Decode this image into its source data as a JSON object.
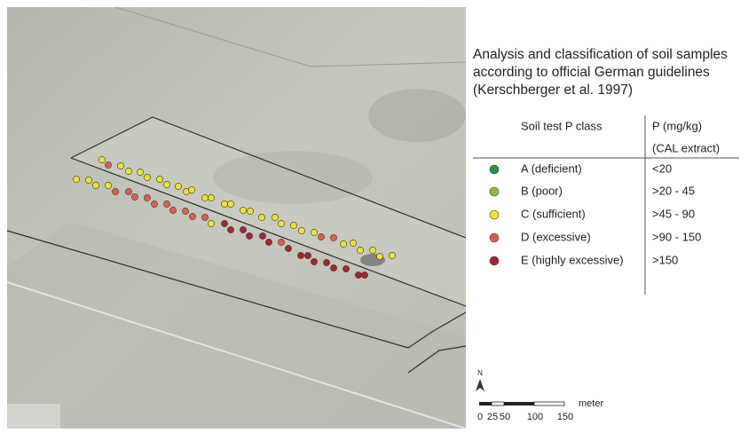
{
  "title_lines": [
    "Analysis and classification of soil samples",
    "according to official German guidelines",
    "(Kerschberger et al. 1997)"
  ],
  "legend": {
    "header": {
      "class": "Soil test P class",
      "unit": "P (mg/kg)",
      "extract": "(CAL extract)"
    },
    "rows": [
      {
        "label": "A (deficient)",
        "range": "<20",
        "color": "#23974a"
      },
      {
        "label": "B (poor)",
        "range": ">20 - 45",
        "color": "#8dbb3e"
      },
      {
        "label": "C (sufficient)",
        "range": ">45 - 90",
        "color": "#efe32c"
      },
      {
        "label": "D (excessive)",
        "range": ">90 - 150",
        "color": "#de5f47"
      },
      {
        "label": "E (highly excessive)",
        "range": ">150",
        "color": "#a8252b"
      }
    ]
  },
  "north": "N",
  "scale": {
    "ticks": [
      0,
      25,
      50,
      100,
      150
    ],
    "unit": "meter"
  }
}
